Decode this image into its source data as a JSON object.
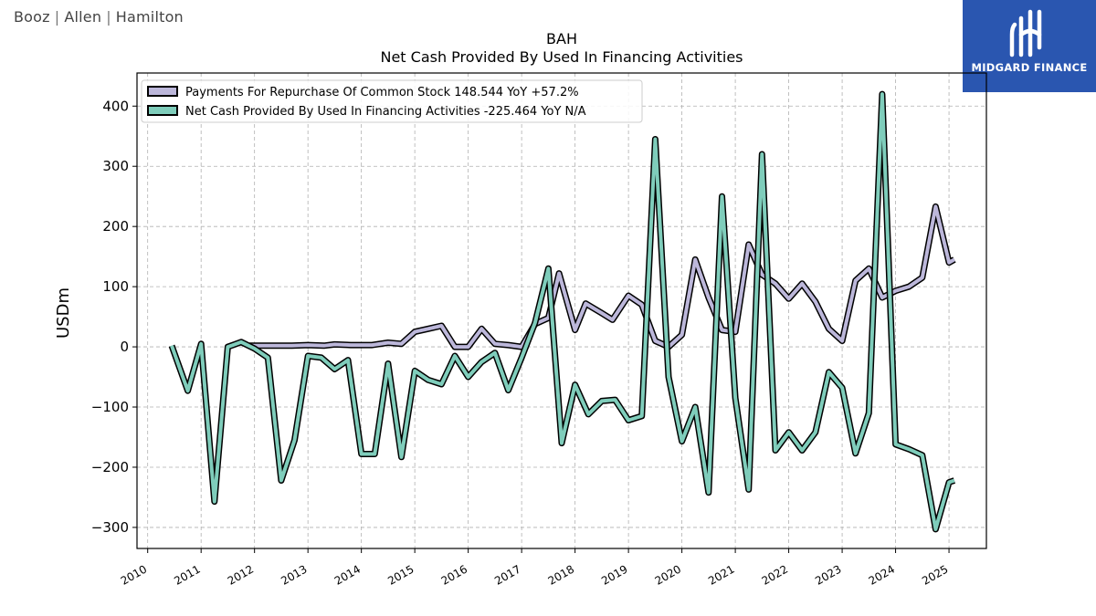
{
  "brand": {
    "part1": "Booz",
    "part2": "Allen",
    "part3": "Hamilton"
  },
  "logo": {
    "text": "MIDGARD FINANCE",
    "color": "#2a56b0"
  },
  "chart_data": {
    "type": "line",
    "title": "BAH",
    "subtitle": "Net Cash Provided By Used In Financing Activities",
    "ylabel": "USDm",
    "xlabel": "",
    "ylim": [
      -335,
      455
    ],
    "xlim": [
      2009.8,
      2025.7
    ],
    "yticks": [
      -300,
      -200,
      -100,
      0,
      100,
      200,
      300,
      400
    ],
    "ytick_labels": [
      "−300",
      "−200",
      "−100",
      "0",
      "100",
      "200",
      "300",
      "400"
    ],
    "xticks": [
      2010,
      2011,
      2012,
      2013,
      2014,
      2015,
      2016,
      2017,
      2018,
      2019,
      2020,
      2021,
      2022,
      2023,
      2024,
      2025
    ],
    "grid": true,
    "legend_position": "top-left",
    "series": [
      {
        "name": "Payments For Repurchase Of Common Stock",
        "legend_label": "Payments For Repurchase Of Common Stock  148.544 YoY +57.2%",
        "color": "#bcb7da",
        "points": [
          [
            2011.9,
            2
          ],
          [
            2012.2,
            2
          ],
          [
            2012.5,
            2
          ],
          [
            2012.7,
            2
          ],
          [
            2013.0,
            3
          ],
          [
            2013.3,
            2
          ],
          [
            2013.5,
            4
          ],
          [
            2013.8,
            3
          ],
          [
            2014.0,
            3
          ],
          [
            2014.2,
            3
          ],
          [
            2014.5,
            7
          ],
          [
            2014.75,
            5
          ],
          [
            2015.0,
            25
          ],
          [
            2015.25,
            30
          ],
          [
            2015.5,
            35
          ],
          [
            2015.75,
            0
          ],
          [
            2016.0,
            0
          ],
          [
            2016.25,
            30
          ],
          [
            2016.5,
            5
          ],
          [
            2016.75,
            3
          ],
          [
            2017.0,
            0
          ],
          [
            2017.25,
            38
          ],
          [
            2017.5,
            48
          ],
          [
            2017.7,
            122
          ],
          [
            2018.0,
            28
          ],
          [
            2018.2,
            72
          ],
          [
            2018.5,
            56
          ],
          [
            2018.7,
            45
          ],
          [
            2019.0,
            85
          ],
          [
            2019.25,
            70
          ],
          [
            2019.5,
            10
          ],
          [
            2019.75,
            0
          ],
          [
            2020.0,
            20
          ],
          [
            2020.25,
            145
          ],
          [
            2020.5,
            82
          ],
          [
            2020.75,
            28
          ],
          [
            2021.0,
            25
          ],
          [
            2021.25,
            170
          ],
          [
            2021.5,
            120
          ],
          [
            2021.75,
            105
          ],
          [
            2022.0,
            80
          ],
          [
            2022.25,
            105
          ],
          [
            2022.5,
            75
          ],
          [
            2022.75,
            30
          ],
          [
            2023.0,
            10
          ],
          [
            2023.25,
            110
          ],
          [
            2023.5,
            130
          ],
          [
            2023.75,
            82
          ],
          [
            2024.0,
            93
          ],
          [
            2024.25,
            100
          ],
          [
            2024.5,
            115
          ],
          [
            2024.75,
            233
          ],
          [
            2025.0,
            140
          ],
          [
            2025.1,
            145
          ]
        ]
      },
      {
        "name": "Net Cash Provided By Used In Financing Activities",
        "legend_label": "Net Cash Provided By Used In Financing Activities  -225.464 YoY N/A",
        "color": "#7fcdbb",
        "points": [
          [
            2010.45,
            2
          ],
          [
            2010.75,
            -73
          ],
          [
            2011.0,
            5
          ],
          [
            2011.25,
            -257
          ],
          [
            2011.5,
            0
          ],
          [
            2011.75,
            8
          ],
          [
            2012.0,
            -3
          ],
          [
            2012.25,
            -18
          ],
          [
            2012.5,
            -222
          ],
          [
            2012.75,
            -155
          ],
          [
            2013.0,
            -15
          ],
          [
            2013.25,
            -18
          ],
          [
            2013.5,
            -37
          ],
          [
            2013.75,
            -22
          ],
          [
            2014.0,
            -178
          ],
          [
            2014.25,
            -178
          ],
          [
            2014.5,
            -28
          ],
          [
            2014.75,
            -183
          ],
          [
            2015.0,
            -40
          ],
          [
            2015.25,
            -55
          ],
          [
            2015.5,
            -62
          ],
          [
            2015.75,
            -15
          ],
          [
            2016.0,
            -50
          ],
          [
            2016.25,
            -25
          ],
          [
            2016.5,
            -10
          ],
          [
            2016.75,
            -72
          ],
          [
            2017.0,
            -18
          ],
          [
            2017.25,
            40
          ],
          [
            2017.5,
            130
          ],
          [
            2017.75,
            -160
          ],
          [
            2018.0,
            -63
          ],
          [
            2018.25,
            -112
          ],
          [
            2018.5,
            -90
          ],
          [
            2018.75,
            -88
          ],
          [
            2019.0,
            -122
          ],
          [
            2019.25,
            -115
          ],
          [
            2019.5,
            345
          ],
          [
            2019.75,
            -50
          ],
          [
            2020.0,
            -157
          ],
          [
            2020.25,
            -100
          ],
          [
            2020.5,
            -242
          ],
          [
            2020.75,
            250
          ],
          [
            2021.0,
            -85
          ],
          [
            2021.25,
            -237
          ],
          [
            2021.5,
            320
          ],
          [
            2021.75,
            -172
          ],
          [
            2022.0,
            -142
          ],
          [
            2022.25,
            -172
          ],
          [
            2022.5,
            -142
          ],
          [
            2022.75,
            -42
          ],
          [
            2023.0,
            -68
          ],
          [
            2023.25,
            -177
          ],
          [
            2023.5,
            -110
          ],
          [
            2023.75,
            420
          ],
          [
            2024.0,
            -162
          ],
          [
            2024.25,
            -170
          ],
          [
            2024.5,
            -180
          ],
          [
            2024.75,
            -303
          ],
          [
            2025.0,
            -225
          ],
          [
            2025.1,
            -222
          ]
        ]
      }
    ]
  }
}
